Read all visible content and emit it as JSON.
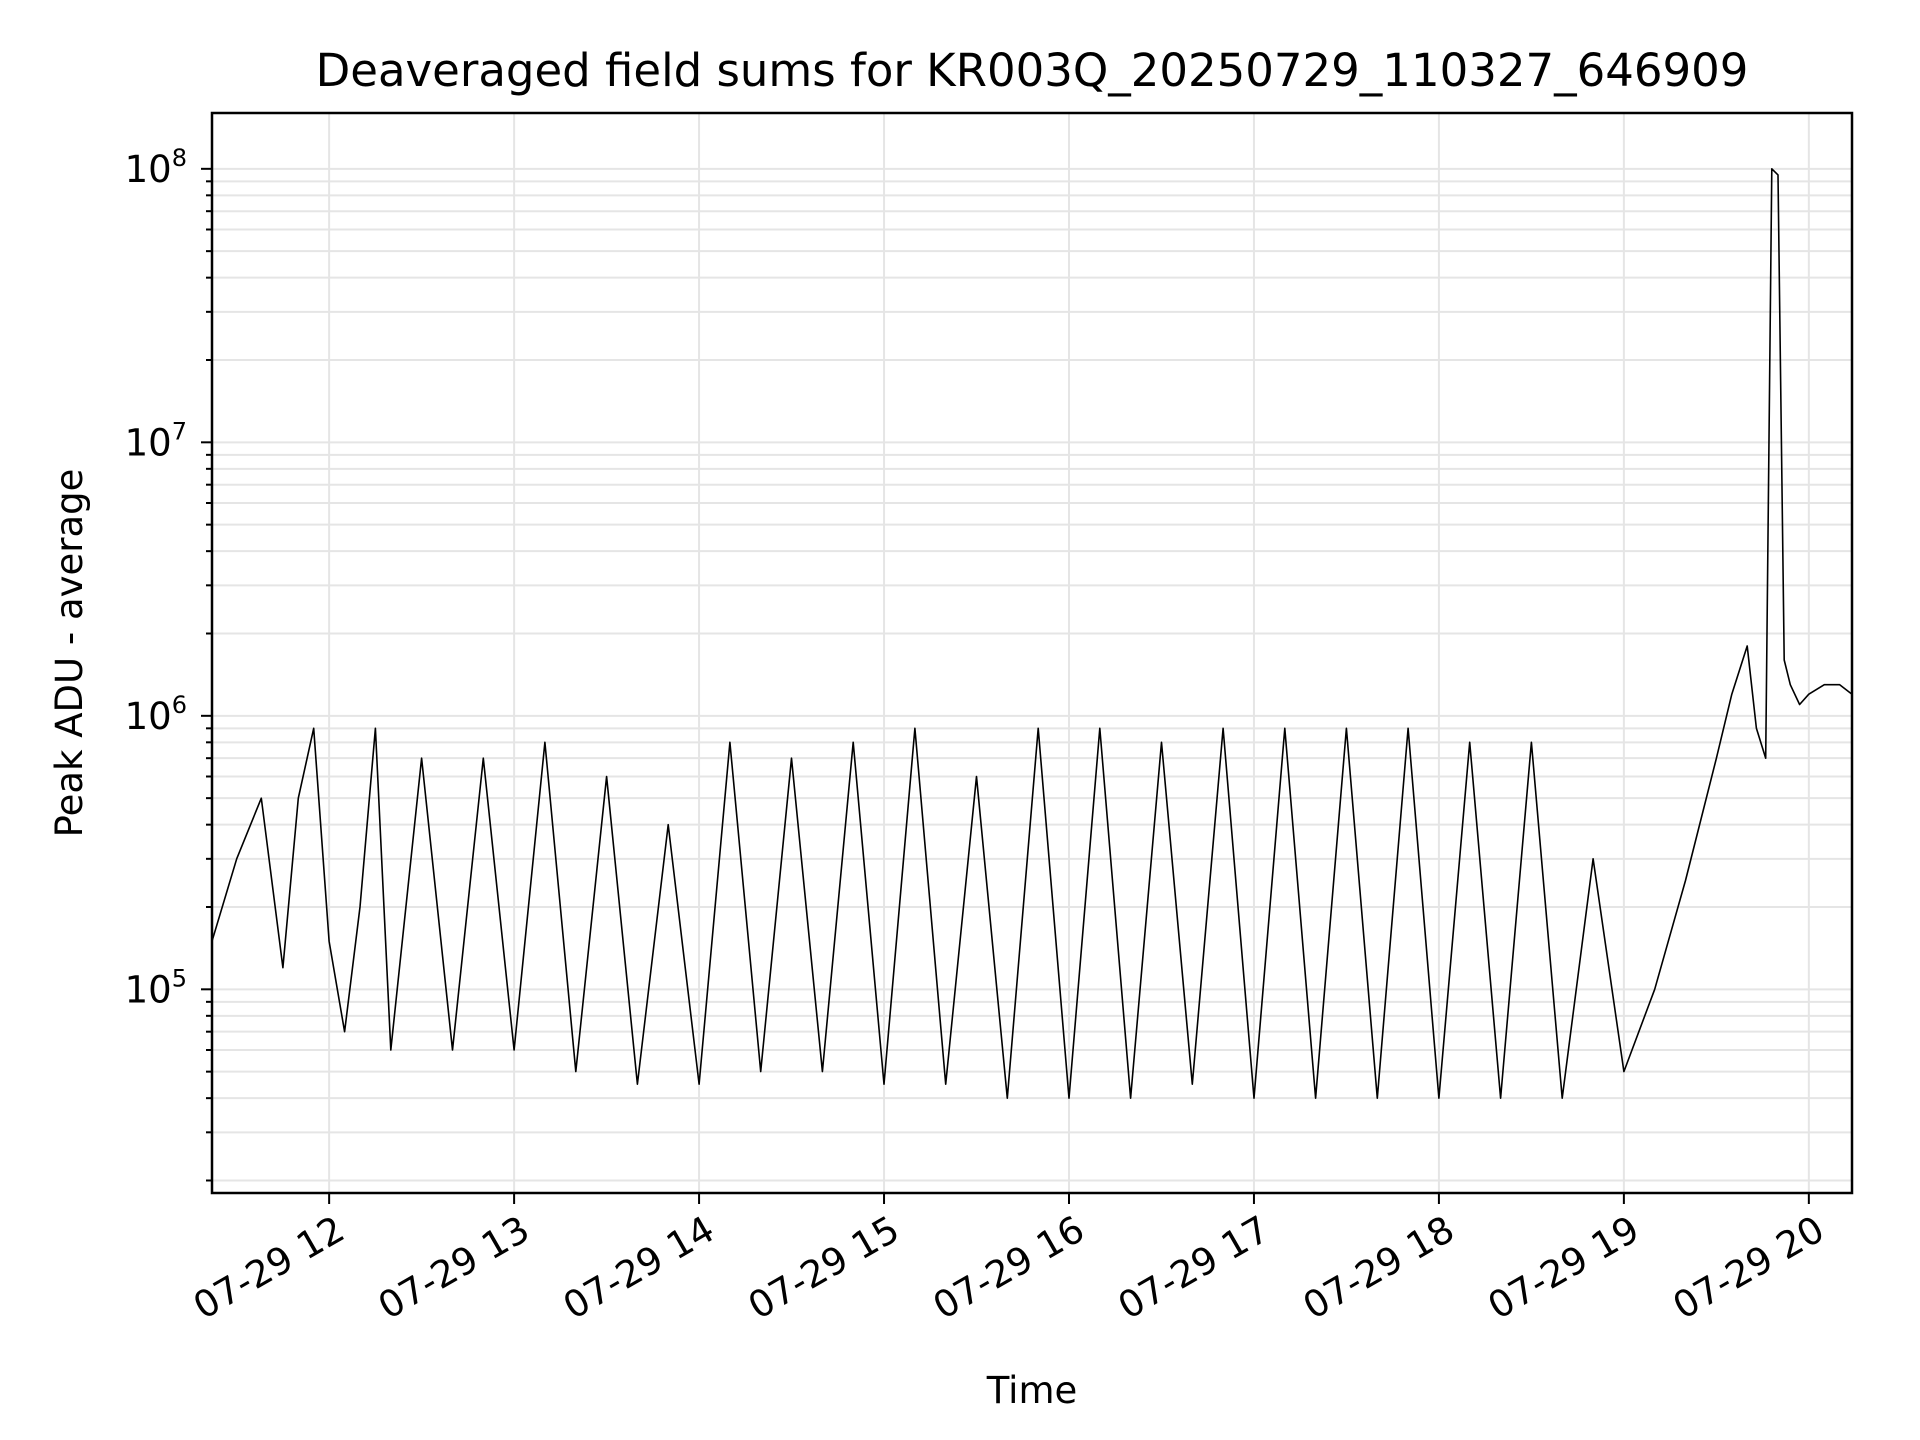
{
  "chart_data": {
    "type": "line",
    "title": "Deaveraged field sums for KR003Q_20250729_110327_646909",
    "xlabel": "Time",
    "ylabel": "Peak ADU - average",
    "yscale": "log",
    "grid": true,
    "xlim": [
      "07-29 11:22",
      "07-29 20:14"
    ],
    "ylim": [
      18000,
      160000000
    ],
    "x_ticks": [
      "07-29 12",
      "07-29 13",
      "07-29 14",
      "07-29 15",
      "07-29 16",
      "07-29 17",
      "07-29 18",
      "07-29 19",
      "07-29 20"
    ],
    "y_ticks": [
      {
        "base": "10",
        "exp": "5",
        "value": 100000
      },
      {
        "base": "10",
        "exp": "6",
        "value": 1000000
      },
      {
        "base": "10",
        "exp": "7",
        "value": 10000000
      },
      {
        "base": "10",
        "exp": "8",
        "value": 100000000
      }
    ],
    "series": [
      {
        "color": "#000000",
        "x": [
          "07-29 11:22",
          "07-29 11:30",
          "07-29 11:38",
          "07-29 11:45",
          "07-29 11:50",
          "07-29 11:55",
          "07-29 12:00",
          "07-29 12:05",
          "07-29 12:10",
          "07-29 12:15",
          "07-29 12:20",
          "07-29 12:30",
          "07-29 12:40",
          "07-29 12:50",
          "07-29 13:00",
          "07-29 13:10",
          "07-29 13:20",
          "07-29 13:30",
          "07-29 13:40",
          "07-29 13:50",
          "07-29 14:00",
          "07-29 14:10",
          "07-29 14:20",
          "07-29 14:30",
          "07-29 14:40",
          "07-29 14:50",
          "07-29 15:00",
          "07-29 15:10",
          "07-29 15:20",
          "07-29 15:30",
          "07-29 15:40",
          "07-29 15:50",
          "07-29 16:00",
          "07-29 16:10",
          "07-29 16:20",
          "07-29 16:30",
          "07-29 16:40",
          "07-29 16:50",
          "07-29 17:00",
          "07-29 17:10",
          "07-29 17:20",
          "07-29 17:30",
          "07-29 17:40",
          "07-29 17:50",
          "07-29 18:00",
          "07-29 18:10",
          "07-29 18:20",
          "07-29 18:30",
          "07-29 18:40",
          "07-29 18:50",
          "07-29 19:00",
          "07-29 19:10",
          "07-29 19:20",
          "07-29 19:30",
          "07-29 19:35",
          "07-29 19:40",
          "07-29 19:43",
          "07-29 19:46",
          "07-29 19:48",
          "07-29 19:50",
          "07-29 19:52",
          "07-29 19:54",
          "07-29 19:57",
          "07-29 20:00",
          "07-29 20:05",
          "07-29 20:10",
          "07-29 20:14"
        ],
        "y": [
          150000,
          300000,
          500000,
          120000,
          500000,
          900000,
          150000,
          70000,
          200000,
          900000,
          60000,
          700000,
          60000,
          700000,
          60000,
          800000,
          50000,
          600000,
          45000,
          400000,
          45000,
          800000,
          50000,
          700000,
          50000,
          800000,
          45000,
          900000,
          45000,
          600000,
          40000,
          900000,
          40000,
          900000,
          40000,
          800000,
          45000,
          900000,
          40000,
          900000,
          40000,
          900000,
          40000,
          900000,
          40000,
          800000,
          40000,
          800000,
          40000,
          300000,
          50000,
          100000,
          250000,
          700000,
          1200000,
          1800000,
          900000,
          700000,
          100000000,
          95000000,
          1600000,
          1300000,
          1100000,
          1200000,
          1300000,
          1300000,
          1200000
        ]
      }
    ]
  }
}
